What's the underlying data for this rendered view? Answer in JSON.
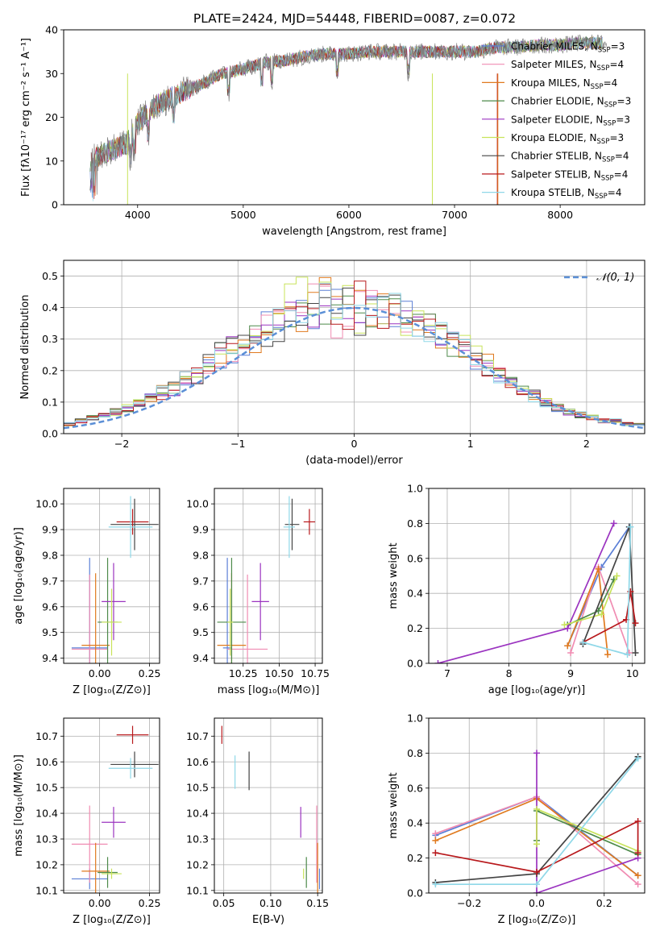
{
  "title": "PLATE=2424, MJD=54448, FIBERID=0087, z=0.072",
  "colors": {
    "chabrier_miles": "#5b7fd6",
    "salpeter_miles": "#f08cb2",
    "kroupa_miles": "#e07a1f",
    "chabrier_elodie": "#4d8a4a",
    "salpeter_elodie": "#9b34c0",
    "kroupa_elodie": "#c8e35a",
    "chabrier_stelib": "#444444",
    "salpeter_stelib": "#b8191c",
    "kroupa_stelib": "#8fd8e8",
    "gaussian": "#5b8fd6"
  },
  "chart_data": [
    {
      "type": "line",
      "title": "PLATE=2424, MJD=54448, FIBERID=0087, z=0.072",
      "xlabel": "wavelength [Angstrom, rest frame]",
      "ylabel": "Flux [fλ10⁻¹⁷ erg cm⁻² s⁻¹ A⁻¹]",
      "xlim": [
        3300,
        8800
      ],
      "ylim": [
        0,
        40
      ],
      "xticks": [
        "4000",
        "5000",
        "6000",
        "7000",
        "8000"
      ],
      "yticks": [
        "0",
        "10",
        "20",
        "30",
        "40"
      ],
      "legend_position": "top-right",
      "legend": [
        "Chabrier MILES, N_SSP=3",
        "Salpeter MILES, N_SSP=4",
        "Kroupa MILES, N_SSP=4",
        "Chabrier ELODIE, N_SSP=3",
        "Salpeter ELODIE, N_SSP=3",
        "Kroupa ELODIE, N_SSP=3",
        "Chabrier STELIB, N_SSP=4",
        "Salpeter STELIB, N_SSP=4",
        "Kroupa STELIB, N_SSP=4"
      ],
      "continuum": {
        "x": [
          3550,
          3700,
          3800,
          3900,
          4000,
          4200,
          4400,
          4600,
          4800,
          5000,
          5200,
          5400,
          5600,
          5800,
          6000,
          6200,
          6400,
          6600,
          6800,
          7000,
          7200,
          7400,
          7600,
          7800,
          8000,
          8200,
          8400
        ],
        "y": [
          10,
          12,
          13,
          14,
          19,
          23,
          25.5,
          27.5,
          30,
          31,
          32.5,
          33,
          34,
          34.5,
          34.5,
          35,
          35,
          35,
          35,
          35,
          35,
          36,
          36,
          36.5,
          36.5,
          37,
          37
        ]
      }
    },
    {
      "type": "line",
      "xlabel": "(data-model)/error",
      "ylabel": "Normed distribution",
      "xlim": [
        -2.5,
        2.5
      ],
      "ylim": [
        0,
        0.55
      ],
      "xticks": [
        "−2",
        "−1",
        "0",
        "1",
        "2"
      ],
      "yticks": [
        "0.0",
        "0.1",
        "0.2",
        "0.3",
        "0.4",
        "0.5"
      ],
      "grid": true,
      "legend": [
        "𝒩(0, 1)"
      ],
      "legend_position": "top-right",
      "histogram_bins": {
        "edges": [
          -2.5,
          -2.4,
          -2.3,
          -2.2,
          -2.1,
          -2.0,
          -1.9,
          -1.8,
          -1.7,
          -1.6,
          -1.5,
          -1.4,
          -1.3,
          -1.2,
          -1.1,
          -1.0,
          -0.9,
          -0.8,
          -0.7,
          -0.6,
          -0.5,
          -0.4,
          -0.3,
          -0.2,
          -0.1,
          0.0,
          0.1,
          0.2,
          0.3,
          0.4,
          0.5,
          0.6,
          0.7,
          0.8,
          0.9,
          1.0,
          1.1,
          1.2,
          1.3,
          1.4,
          1.5,
          1.6,
          1.7,
          1.8,
          1.9,
          2.0,
          2.1,
          2.2,
          2.3,
          2.4,
          2.5
        ],
        "reference_values": [
          0.03,
          0.04,
          0.05,
          0.06,
          0.07,
          0.08,
          0.1,
          0.11,
          0.13,
          0.14,
          0.17,
          0.19,
          0.22,
          0.25,
          0.27,
          0.29,
          0.31,
          0.33,
          0.35,
          0.37,
          0.38,
          0.39,
          0.4,
          0.4,
          0.4,
          0.4,
          0.4,
          0.39,
          0.38,
          0.36,
          0.35,
          0.33,
          0.31,
          0.29,
          0.27,
          0.24,
          0.22,
          0.19,
          0.17,
          0.14,
          0.12,
          0.1,
          0.08,
          0.07,
          0.06,
          0.05,
          0.04,
          0.04,
          0.03,
          0.03
        ]
      }
    },
    {
      "type": "scatter",
      "xlabel": "Z [log₁₀(Z/Z⊙)]",
      "ylabel": "age  [log₁₀(age/yr)]",
      "xlim": [
        -0.18,
        0.3
      ],
      "ylim": [
        9.38,
        10.06
      ],
      "xticks": [
        "0.00",
        "0.25"
      ],
      "yticks": [
        "9.4",
        "9.5",
        "9.6",
        "9.7",
        "9.8",
        "9.9",
        "10.0"
      ],
      "series": [
        {
          "color": "chabrier_miles",
          "x": -0.05,
          "y": 9.44,
          "xerr": 0.09,
          "yerr": 0.35
        },
        {
          "color": "salpeter_miles",
          "x": -0.05,
          "y": 9.435,
          "xerr": 0.09,
          "yerr": 0.29
        },
        {
          "color": "kroupa_miles",
          "x": -0.02,
          "y": 9.45,
          "xerr": 0.07,
          "yerr": 0.28
        },
        {
          "color": "chabrier_elodie",
          "x": 0.04,
          "y": 9.54,
          "xerr": 0.05,
          "yerr": 0.25
        },
        {
          "color": "salpeter_elodie",
          "x": 0.07,
          "y": 9.62,
          "xerr": 0.06,
          "yerr": 0.15
        },
        {
          "color": "kroupa_elodie",
          "x": 0.06,
          "y": 9.54,
          "xerr": 0.05,
          "yerr": 0.13
        },
        {
          "color": "chabrier_stelib",
          "x": 0.175,
          "y": 9.92,
          "xerr": 0.12,
          "yerr": 0.1
        },
        {
          "color": "salpeter_stelib",
          "x": 0.165,
          "y": 9.93,
          "xerr": 0.08,
          "yerr": 0.05
        },
        {
          "color": "kroupa_stelib",
          "x": 0.155,
          "y": 9.91,
          "xerr": 0.11,
          "yerr": 0.12
        }
      ]
    },
    {
      "type": "scatter",
      "xlabel": "mass [log₁₀(M/M⊙)]",
      "xlim": [
        10.05,
        10.8
      ],
      "ylim": [
        9.38,
        10.06
      ],
      "xticks": [
        "10.25",
        "10.50",
        "10.75"
      ],
      "yticks": [
        "9.4",
        "9.5",
        "9.6",
        "9.7",
        "9.8",
        "9.9",
        "10.0"
      ],
      "series": [
        {
          "color": "chabrier_miles",
          "x": 10.14,
          "y": 9.44,
          "xerr": 0.03,
          "yerr": 0.35
        },
        {
          "color": "salpeter_miles",
          "x": 10.28,
          "y": 9.435,
          "xerr": 0.14,
          "yerr": 0.29
        },
        {
          "color": "kroupa_miles",
          "x": 10.17,
          "y": 9.45,
          "xerr": 0.1,
          "yerr": 0.28
        },
        {
          "color": "chabrier_elodie",
          "x": 10.17,
          "y": 9.54,
          "xerr": 0.1,
          "yerr": 0.25
        },
        {
          "color": "salpeter_elodie",
          "x": 10.37,
          "y": 9.62,
          "xerr": 0.06,
          "yerr": 0.15
        },
        {
          "color": "kroupa_elodie",
          "x": 10.16,
          "y": 9.54,
          "xerr": 0.02,
          "yerr": 0.13
        },
        {
          "color": "chabrier_stelib",
          "x": 10.59,
          "y": 9.92,
          "xerr": 0.05,
          "yerr": 0.1
        },
        {
          "color": "salpeter_stelib",
          "x": 10.71,
          "y": 9.93,
          "xerr": 0.04,
          "yerr": 0.05
        },
        {
          "color": "kroupa_stelib",
          "x": 10.57,
          "y": 9.91,
          "xerr": 0.04,
          "yerr": 0.12
        }
      ]
    },
    {
      "type": "line",
      "xlabel": "age  [log₁₀(age/yr)]",
      "ylabel": "mass weight",
      "xlim": [
        6.7,
        10.2
      ],
      "ylim": [
        0,
        1
      ],
      "xticks": [
        "7",
        "8",
        "9",
        "10"
      ],
      "yticks": [
        "0.0",
        "0.2",
        "0.4",
        "0.6",
        "0.8",
        "1.0"
      ],
      "grid": true,
      "series": [
        {
          "color": "chabrier_miles",
          "x": [
            8.95,
            9.5,
            9.95
          ],
          "y": [
            0.1,
            0.55,
            0.78
          ]
        },
        {
          "color": "salpeter_miles",
          "x": [
            9.0,
            9.45,
            9.95
          ],
          "y": [
            0.06,
            0.55,
            0.06
          ]
        },
        {
          "color": "kroupa_miles",
          "x": [
            8.95,
            9.45,
            9.6
          ],
          "y": [
            0.1,
            0.54,
            0.05
          ]
        },
        {
          "color": "chabrier_elodie",
          "x": [
            8.95,
            9.45,
            9.7
          ],
          "y": [
            0.22,
            0.3,
            0.48
          ]
        },
        {
          "color": "salpeter_elodie",
          "x": [
            6.85,
            8.95,
            9.7
          ],
          "y": [
            0.0,
            0.2,
            0.8
          ]
        },
        {
          "color": "kroupa_elodie",
          "x": [
            8.9,
            9.5,
            9.75
          ],
          "y": [
            0.22,
            0.28,
            0.5
          ]
        },
        {
          "color": "chabrier_stelib",
          "x": [
            9.2,
            9.95,
            10.05
          ],
          "y": [
            0.11,
            0.78,
            0.06
          ]
        },
        {
          "color": "salpeter_stelib",
          "x": [
            9.2,
            9.9,
            9.97,
            10.05
          ],
          "y": [
            0.12,
            0.25,
            0.41,
            0.23
          ]
        },
        {
          "color": "kroupa_stelib",
          "x": [
            9.2,
            9.92,
            9.97
          ],
          "y": [
            0.12,
            0.05,
            0.78
          ]
        }
      ]
    },
    {
      "type": "scatter",
      "xlabel": "Z [log₁₀(Z/Z⊙)]",
      "ylabel": "mass [log₁₀(M/M⊙)]",
      "xlim": [
        -0.18,
        0.3
      ],
      "ylim": [
        10.09,
        10.77
      ],
      "xticks": [
        "0.00",
        "0.25"
      ],
      "yticks": [
        "10.1",
        "10.2",
        "10.3",
        "10.4",
        "10.5",
        "10.6",
        "10.7"
      ],
      "series": [
        {
          "color": "chabrier_miles",
          "x": -0.05,
          "y": 10.145,
          "xerr": 0.09,
          "yerr": 0.04
        },
        {
          "color": "salpeter_miles",
          "x": -0.05,
          "y": 10.28,
          "xerr": 0.09,
          "yerr": 0.15
        },
        {
          "color": "kroupa_miles",
          "x": -0.02,
          "y": 10.175,
          "xerr": 0.07,
          "yerr": 0.11
        },
        {
          "color": "chabrier_elodie",
          "x": 0.04,
          "y": 10.17,
          "xerr": 0.05,
          "yerr": 0.06
        },
        {
          "color": "salpeter_elodie",
          "x": 0.07,
          "y": 10.365,
          "xerr": 0.06,
          "yerr": 0.06
        },
        {
          "color": "kroupa_elodie",
          "x": 0.06,
          "y": 10.165,
          "xerr": 0.05,
          "yerr": 0.02
        },
        {
          "color": "chabrier_stelib",
          "x": 0.175,
          "y": 10.59,
          "xerr": 0.12,
          "yerr": 0.05
        },
        {
          "color": "salpeter_stelib",
          "x": 0.165,
          "y": 10.705,
          "xerr": 0.08,
          "yerr": 0.035
        },
        {
          "color": "kroupa_stelib",
          "x": 0.155,
          "y": 10.575,
          "xerr": 0.11,
          "yerr": 0.04
        }
      ]
    },
    {
      "type": "scatter",
      "xlabel": "E(B-V)",
      "xlim": [
        0.04,
        0.155
      ],
      "ylim": [
        10.09,
        10.77
      ],
      "xticks": [
        "0.05",
        "0.10",
        "0.15"
      ],
      "yticks": [
        "10.1",
        "10.2",
        "10.3",
        "10.4",
        "10.5",
        "10.6",
        "10.7"
      ],
      "series": [
        {
          "color": "chabrier_miles",
          "x": 0.152,
          "y": 10.145,
          "yerr": 0.04
        },
        {
          "color": "salpeter_miles",
          "x": 0.149,
          "y": 10.28,
          "yerr": 0.15
        },
        {
          "color": "kroupa_miles",
          "x": 0.15,
          "y": 10.175,
          "yerr": 0.11
        },
        {
          "color": "chabrier_elodie",
          "x": 0.138,
          "y": 10.17,
          "yerr": 0.06
        },
        {
          "color": "salpeter_elodie",
          "x": 0.132,
          "y": 10.365,
          "yerr": 0.06
        },
        {
          "color": "kroupa_elodie",
          "x": 0.135,
          "y": 10.165,
          "yerr": 0.02
        },
        {
          "color": "chabrier_stelib",
          "x": 0.077,
          "y": 10.565,
          "yerr": 0.075
        },
        {
          "color": "salpeter_stelib",
          "x": 0.048,
          "y": 10.705,
          "yerr": 0.035
        },
        {
          "color": "kroupa_stelib",
          "x": 0.062,
          "y": 10.56,
          "yerr": 0.065
        }
      ]
    },
    {
      "type": "line",
      "xlabel": "Z [log₁₀(Z/Z⊙)]",
      "ylabel": "mass weight",
      "xlim": [
        -0.32,
        0.32
      ],
      "ylim": [
        0,
        1
      ],
      "xticks": [
        "−0.2",
        "0.0",
        "0.2"
      ],
      "yticks": [
        "0.0",
        "0.2",
        "0.4",
        "0.6",
        "0.8",
        "1.0"
      ],
      "grid": true,
      "series": [
        {
          "color": "chabrier_miles",
          "x": [
            -0.3,
            0.0,
            0.3
          ],
          "y": [
            0.33,
            0.55,
            0.1
          ]
        },
        {
          "color": "salpeter_miles",
          "x": [
            -0.3,
            0.0,
            0.3
          ],
          "y": [
            0.34,
            0.55,
            0.05
          ]
        },
        {
          "color": "kroupa_miles",
          "x": [
            -0.3,
            0.0,
            0.3
          ],
          "y": [
            0.3,
            0.54,
            0.1
          ]
        },
        {
          "color": "chabrier_elodie",
          "x": [
            0.0,
            0.0,
            0.3
          ],
          "y": [
            0.3,
            0.47,
            0.22
          ]
        },
        {
          "color": "salpeter_elodie",
          "x": [
            0.0,
            0.0,
            0.3
          ],
          "y": [
            0.8,
            0.0,
            0.2
          ]
        },
        {
          "color": "kroupa_elodie",
          "x": [
            0.0,
            0.0,
            0.3
          ],
          "y": [
            0.28,
            0.48,
            0.24
          ]
        },
        {
          "color": "chabrier_stelib",
          "x": [
            -0.3,
            0.0,
            0.3
          ],
          "y": [
            0.06,
            0.11,
            0.78
          ]
        },
        {
          "color": "salpeter_stelib",
          "x": [
            -0.3,
            0.0,
            0.3,
            0.3
          ],
          "y": [
            0.23,
            0.12,
            0.41,
            0.23
          ]
        },
        {
          "color": "kroupa_stelib",
          "x": [
            -0.3,
            0.0,
            0.3
          ],
          "y": [
            0.05,
            0.05,
            0.77
          ]
        }
      ]
    }
  ]
}
